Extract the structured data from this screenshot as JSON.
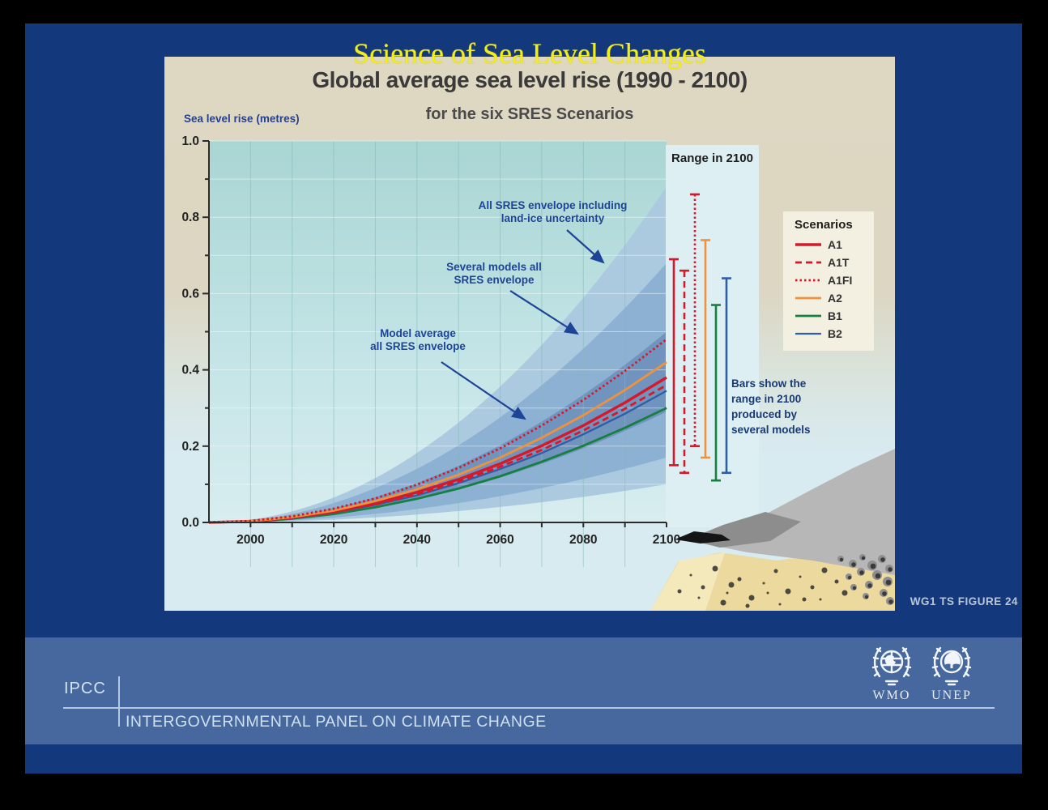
{
  "slide": {
    "title": "Science of Sea Level Changes",
    "caption": "WG1 TS FIGURE 24",
    "footer": {
      "abbr": "IPCC",
      "name": "INTERGOVERNMENTAL PANEL ON CLIMATE CHANGE",
      "logos": [
        {
          "name": "wmo-logo",
          "label": "WMO"
        },
        {
          "name": "unep-logo",
          "label": "UNEP"
        }
      ]
    },
    "colors": {
      "slide_bg": "#14387c",
      "footer_band": "#46689e",
      "title_yellow": "#f2ee1d",
      "figure_top": "#ddd7c2",
      "figure_bottom": "#d8ebf1"
    }
  },
  "chart_data": {
    "type": "line",
    "title": "Global average sea level rise (1990 - 2100)",
    "subtitle": "for the six SRES Scenarios",
    "ylabel": "Sea level rise (metres)",
    "xlabel": "",
    "xlim": [
      1990,
      2100
    ],
    "ylim": [
      0.0,
      1.0
    ],
    "x_ticks": [
      2000,
      2020,
      2040,
      2060,
      2080,
      2100
    ],
    "y_ticks": [
      "0.0",
      "0.2",
      "0.4",
      "0.6",
      "0.8",
      "1.0"
    ],
    "grid": true,
    "legend_title": "Scenarios",
    "legend_position": "right",
    "x": [
      1990,
      2000,
      2010,
      2020,
      2030,
      2040,
      2050,
      2060,
      2070,
      2080,
      2090,
      2100
    ],
    "series": [
      {
        "name": "A1",
        "color": "#d6182b",
        "style": "solid",
        "y": [
          0,
          0.003,
          0.013,
          0.028,
          0.05,
          0.079,
          0.113,
          0.154,
          0.201,
          0.254,
          0.314,
          0.38
        ],
        "model_average_2100": 0.38,
        "range_2100": [
          0.15,
          0.69
        ]
      },
      {
        "name": "A1T",
        "color": "#d6182b",
        "style": "dashed",
        "y": [
          0,
          0.003,
          0.012,
          0.027,
          0.048,
          0.074,
          0.107,
          0.146,
          0.19,
          0.241,
          0.298,
          0.36
        ],
        "model_average_2100": 0.36,
        "range_2100": [
          0.13,
          0.66
        ]
      },
      {
        "name": "A1FI",
        "color": "#d6182b",
        "style": "dotted",
        "y": [
          0,
          0.004,
          0.016,
          0.036,
          0.063,
          0.099,
          0.143,
          0.194,
          0.254,
          0.321,
          0.397,
          0.48
        ],
        "model_average_2100": 0.48,
        "range_2100": [
          0.2,
          0.86
        ]
      },
      {
        "name": "A2",
        "color": "#f0913c",
        "style": "solid",
        "y": [
          0,
          0.003,
          0.014,
          0.031,
          0.056,
          0.087,
          0.125,
          0.17,
          0.222,
          0.281,
          0.347,
          0.42
        ],
        "model_average_2100": 0.42,
        "range_2100": [
          0.17,
          0.74
        ]
      },
      {
        "name": "B1",
        "color": "#15803f",
        "style": "solid",
        "y": [
          0,
          0.002,
          0.01,
          0.022,
          0.04,
          0.062,
          0.089,
          0.121,
          0.159,
          0.201,
          0.248,
          0.3
        ],
        "model_average_2100": 0.3,
        "range_2100": [
          0.11,
          0.57
        ]
      },
      {
        "name": "B2",
        "color": "#2e5fa5",
        "style": "solid",
        "y": [
          0,
          0.003,
          0.011,
          0.026,
          0.046,
          0.071,
          0.103,
          0.14,
          0.182,
          0.231,
          0.285,
          0.345
        ],
        "model_average_2100": 0.345,
        "range_2100": [
          0.13,
          0.64
        ]
      }
    ],
    "envelopes": [
      {
        "name": "All SRES envelope including land-ice uncertainty",
        "hi_2100": 0.88,
        "lo_2100": 0.1,
        "color": "#accadf"
      },
      {
        "name": "Several models all SRES envelope",
        "hi_2100": 0.68,
        "lo_2100": 0.17,
        "color": "#8db1d3"
      },
      {
        "name": "Model average all SRES envelope",
        "hi_2100": 0.5,
        "lo_2100": 0.29,
        "color": "#7194bf"
      }
    ],
    "annotations": [
      {
        "lines": [
          "All SRES envelope including",
          "land-ice uncertainty"
        ]
      },
      {
        "lines": [
          "Several models all",
          "SRES envelope"
        ]
      },
      {
        "lines": [
          "Model average",
          "all SRES envelope"
        ]
      }
    ],
    "range_panel_title": "Range in 2100",
    "bars_note": "Bars show the range in 2100 produced by several models"
  }
}
